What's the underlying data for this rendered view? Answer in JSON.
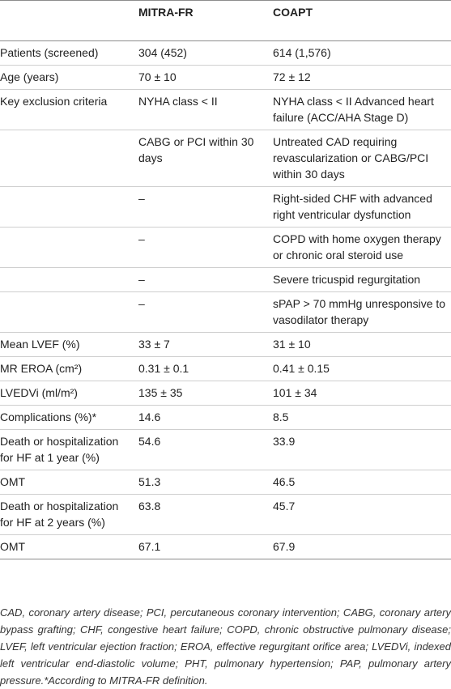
{
  "header": {
    "col1": "",
    "col2": "MITRA-FR",
    "col3": "COAPT"
  },
  "rows": [
    {
      "label": "Patients (screened)",
      "mitra": "304 (452)",
      "coapt": "614 (1,576)"
    },
    {
      "label": "Age (years)",
      "mitra": "70 ± 10",
      "coapt": "72 ± 12"
    },
    {
      "label": "Key exclusion criteria",
      "mitra": "NYHA class < II",
      "coapt": "NYHA class < II Advanced heart failure (ACC/AHA Stage D)"
    },
    {
      "label": "",
      "mitra": "CABG or PCI within 30 days",
      "coapt": "Untreated CAD requiring revascularization or CABG/PCI within 30 days"
    },
    {
      "label": "",
      "mitra": "–",
      "coapt": "Right-sided CHF with advanced right ventricular dysfunction"
    },
    {
      "label": "",
      "mitra": "–",
      "coapt": "COPD with home oxygen therapy or chronic oral steroid use"
    },
    {
      "label": "",
      "mitra": "–",
      "coapt": "Severe tricuspid regurgitation"
    },
    {
      "label": "",
      "mitra": "–",
      "coapt": "sPAP > 70 mmHg unresponsive to vasodilator therapy"
    },
    {
      "label": "Mean LVEF (%)",
      "mitra": "33 ± 7",
      "coapt": "31 ± 10"
    },
    {
      "label": "MR EROA (cm²)",
      "mitra": "0.31 ± 0.1",
      "coapt": "0.41 ± 0.15"
    },
    {
      "label": "LVEDVi (ml/m²)",
      "mitra": "135 ± 35",
      "coapt": "101 ± 34"
    },
    {
      "label": "Complications (%)*",
      "mitra": "14.6",
      "coapt": "8.5"
    },
    {
      "label": "Death or hospitalization for HF at 1 year (%)",
      "mitra": "54.6",
      "coapt": "33.9"
    },
    {
      "label": "OMT",
      "mitra": "51.3",
      "coapt": "46.5"
    },
    {
      "label": "Death or hospitalization for HF at 2 years (%)",
      "mitra": "63.8",
      "coapt": "45.7"
    },
    {
      "label": "OMT",
      "mitra": "67.1",
      "coapt": "67.9"
    }
  ],
  "footnote": "CAD, coronary artery disease; PCI, percutaneous coronary intervention; CABG, coronary artery bypass grafting; CHF, congestive heart failure; COPD, chronic obstructive pulmonary disease; LVEF, left ventricular ejection fraction; EROA, effective regurgitant orifice area; LVEDVi, indexed left ventricular end-diastolic volume; PHT, pulmonary hypertension; PAP, pulmonary artery pressure.*According to MITRA-FR definition."
}
